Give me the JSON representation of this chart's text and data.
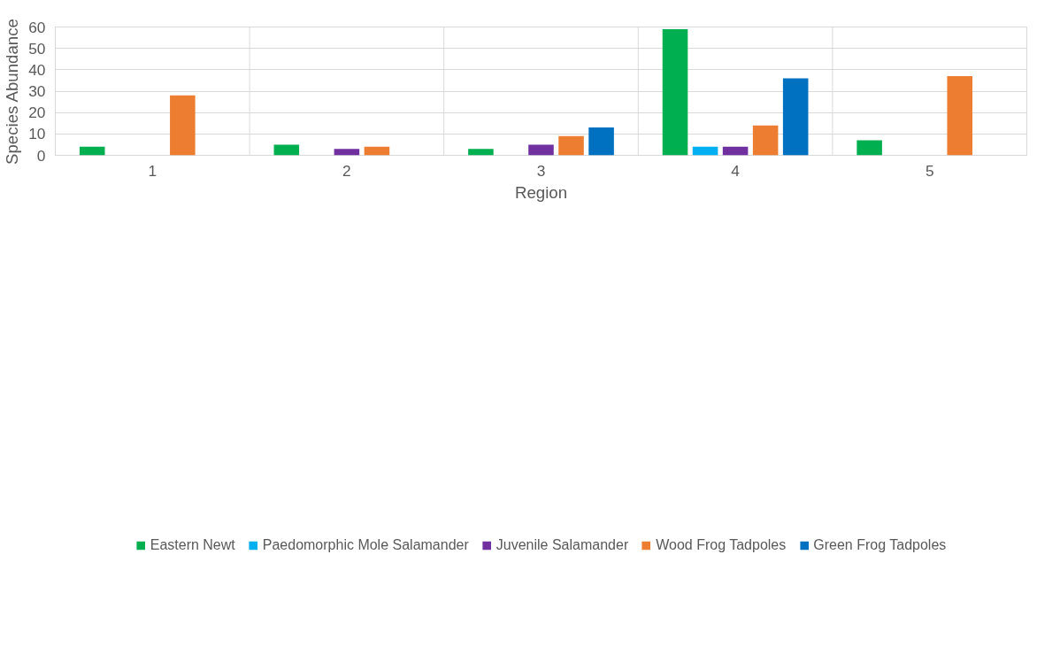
{
  "chart_data": {
    "type": "bar",
    "xlabel": "Region",
    "ylabel": "Species Abundance",
    "categories": [
      "1",
      "2",
      "3",
      "4",
      "5"
    ],
    "ylim": [
      0,
      60
    ],
    "yticks": [
      0,
      10,
      20,
      30,
      40,
      50,
      60
    ],
    "grid": true,
    "legend": "bottom",
    "series": [
      {
        "name": "Eastern Newt",
        "color": "#00b050",
        "values": [
          4,
          5,
          3,
          59,
          7
        ]
      },
      {
        "name": "Paedomorphic Mole Salamander",
        "color": "#00b0f0",
        "values": [
          0,
          0,
          0,
          4,
          0
        ]
      },
      {
        "name": "Juvenile Salamander",
        "color": "#7030a0",
        "values": [
          0,
          3,
          5,
          4,
          0
        ]
      },
      {
        "name": "Wood Frog Tadpoles",
        "color": "#ed7d31",
        "values": [
          28,
          4,
          9,
          14,
          37
        ]
      },
      {
        "name": "Green Frog Tadpoles",
        "color": "#0070c0",
        "values": [
          0,
          0,
          13,
          36,
          0
        ]
      }
    ]
  }
}
